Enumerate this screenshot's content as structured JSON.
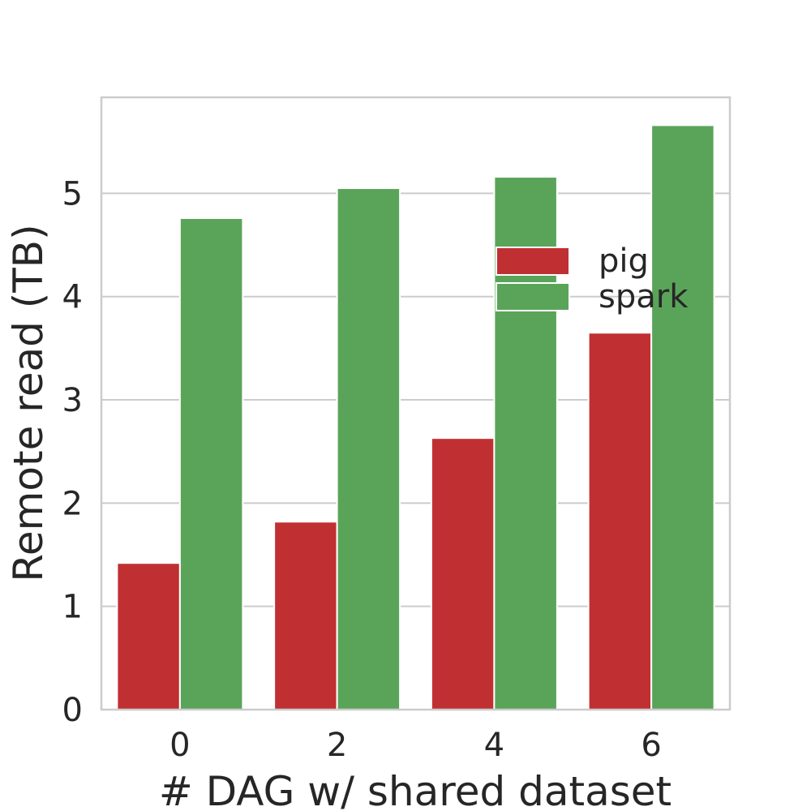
{
  "chart_data": {
    "type": "bar",
    "categories": [
      "0",
      "2",
      "4",
      "6"
    ],
    "series": [
      {
        "name": "pig",
        "values": [
          1.42,
          1.82,
          2.63,
          3.65
        ],
        "color": "#c03033"
      },
      {
        "name": "spark",
        "values": [
          4.76,
          5.05,
          5.16,
          5.66
        ],
        "color": "#5aa45a"
      }
    ],
    "xlabel": "# DAG w/ shared dataset",
    "ylabel": "Remote read (TB)",
    "ylim": [
      0,
      5.93
    ],
    "yticks": [
      0,
      1,
      2,
      3,
      4,
      5
    ],
    "grid": true,
    "legend_position": "upper-right"
  }
}
